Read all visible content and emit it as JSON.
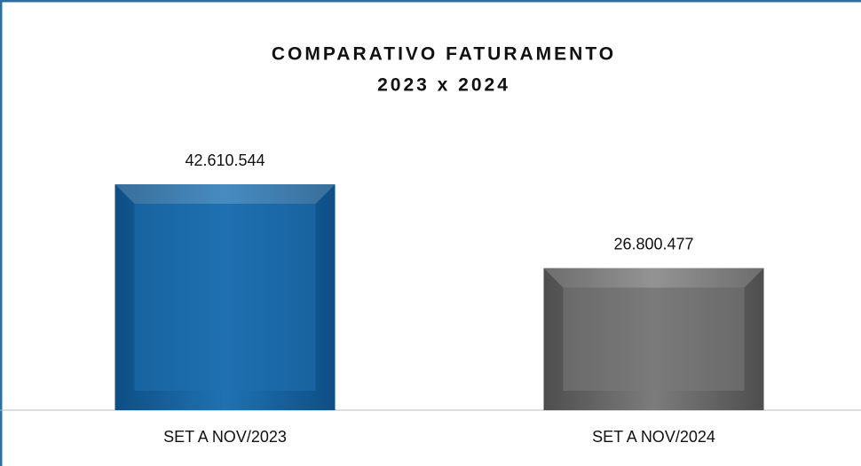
{
  "chart_data": {
    "type": "bar",
    "title": "COMPARATIVO FATURAMENTO",
    "subtitle": "2023 x 2024",
    "categories": [
      "SET A NOV/2023",
      "SET A NOV/2024"
    ],
    "series": [
      {
        "colors": [
          "#1f6fae",
          "#7a7a7a"
        ],
        "values": [
          42610544,
          26800477
        ],
        "value_labels": [
          "42.610.544",
          "26.800.477"
        ]
      }
    ]
  }
}
